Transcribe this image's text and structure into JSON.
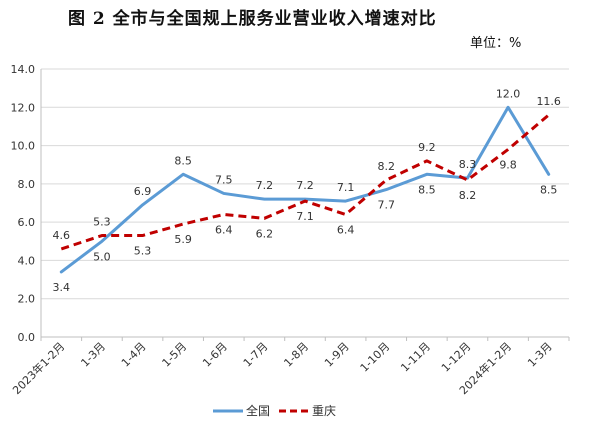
{
  "title": "图 2    全市与全国规上服务业营业收入增速对比",
  "unit": "单位：%",
  "chart_data": {
    "type": "line",
    "categories": [
      "2023年1-2月",
      "1-3月",
      "1-4月",
      "1-5月",
      "1-6月",
      "1-7月",
      "1-8月",
      "1-9月",
      "1-10月",
      "1-11月",
      "1-12月",
      "2024年1-2月",
      "1-3月"
    ],
    "ylim": [
      0,
      14
    ],
    "yticks": [
      "0.0",
      "2.0",
      "4.0",
      "6.0",
      "8.0",
      "10.0",
      "12.0",
      "14.0"
    ],
    "grid": true,
    "legend_position": "bottom",
    "series": [
      {
        "name": "全国",
        "color": "#5B9BD5",
        "style": "solid",
        "values": [
          3.4,
          5.0,
          6.9,
          8.5,
          7.5,
          7.2,
          7.2,
          7.1,
          7.7,
          8.5,
          8.3,
          12.0,
          8.5
        ],
        "labels": [
          "3.4",
          "5.0",
          "6.9",
          "8.5",
          "7.5",
          "7.2",
          "7.2",
          "7.1",
          "7.7",
          "8.5",
          "8.3",
          "12.0",
          "8.5"
        ]
      },
      {
        "name": "重庆",
        "color": "#C00000",
        "style": "dashed",
        "values": [
          4.6,
          5.3,
          5.3,
          5.9,
          6.4,
          6.2,
          7.1,
          6.4,
          8.2,
          9.2,
          8.2,
          9.8,
          11.6
        ],
        "labels": [
          "4.6",
          "5.3",
          "5.3",
          "5.9",
          "6.4",
          "6.2",
          "7.1",
          "6.4",
          "8.2",
          "9.2",
          "8.2",
          "9.8",
          "11.6"
        ]
      }
    ]
  }
}
